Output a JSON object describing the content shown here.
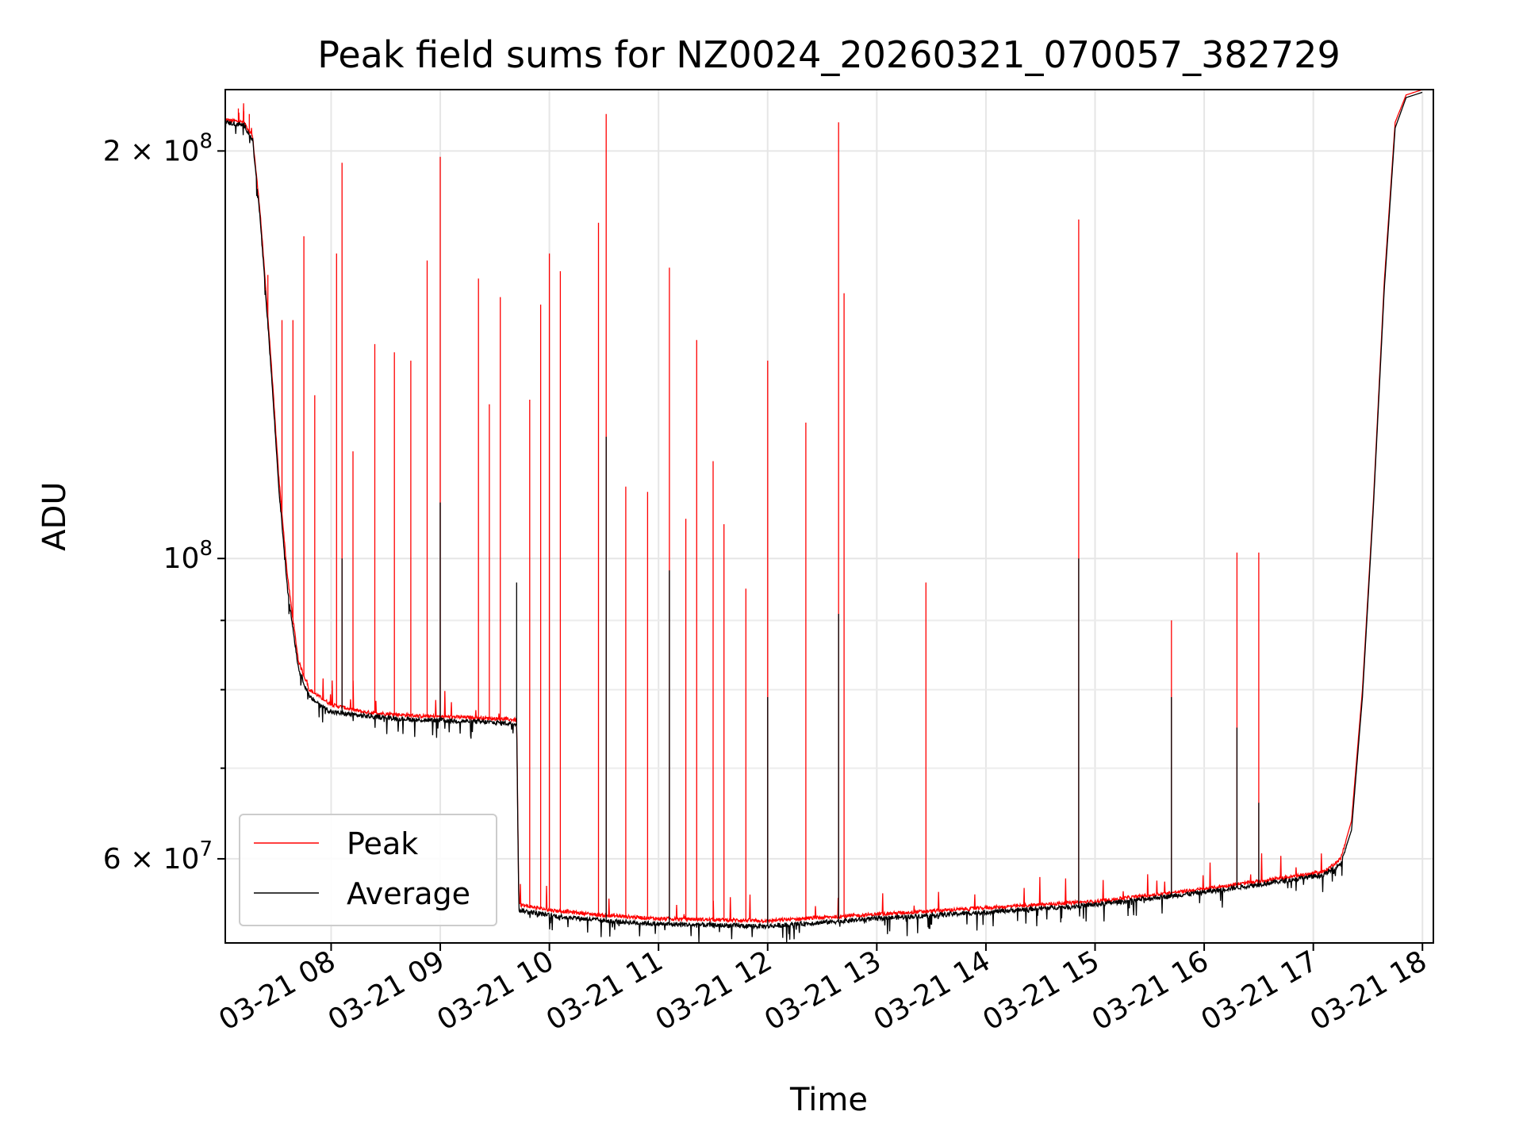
{
  "chart_data": {
    "type": "line",
    "title": "Peak field sums for NZ0024_20260321_070057_382729",
    "xlabel": "Time",
    "ylabel": "ADU",
    "yscale": "log",
    "ylim": [
      52000000,
      222000000
    ],
    "xlim_hours": [
      7.03,
      18.1
    ],
    "grid": true,
    "legend_position": "lower-left",
    "x_ticks": [
      {
        "label": "03-21 08",
        "hour": 8
      },
      {
        "label": "03-21 09",
        "hour": 9
      },
      {
        "label": "03-21 10",
        "hour": 10
      },
      {
        "label": "03-21 11",
        "hour": 11
      },
      {
        "label": "03-21 12",
        "hour": 12
      },
      {
        "label": "03-21 13",
        "hour": 13
      },
      {
        "label": "03-21 14",
        "hour": 14
      },
      {
        "label": "03-21 15",
        "hour": 15
      },
      {
        "label": "03-21 16",
        "hour": 16
      },
      {
        "label": "03-21 17",
        "hour": 17
      },
      {
        "label": "03-21 18",
        "hour": 18
      }
    ],
    "y_major_ticks": [
      {
        "mantissa": "6",
        "exponent": "7",
        "value": 60000000
      },
      {
        "mantissa": "",
        "exponent": "8",
        "value": 100000000
      },
      {
        "mantissa": "2",
        "exponent": "8",
        "value": 200000000
      }
    ],
    "y_minor_ticks": [
      70000000,
      80000000,
      90000000
    ],
    "series": [
      {
        "name": "Peak",
        "color": "#ff0000",
        "baseline": [
          [
            7.03,
            211000000
          ],
          [
            7.2,
            210000000
          ],
          [
            7.28,
            205000000
          ],
          [
            7.35,
            180000000
          ],
          [
            7.45,
            140000000
          ],
          [
            7.52,
            115000000
          ],
          [
            7.6,
            97000000
          ],
          [
            7.7,
            84000000
          ],
          [
            7.8,
            80000000
          ],
          [
            8.0,
            78000000
          ],
          [
            8.3,
            77000000
          ],
          [
            8.8,
            76500000
          ],
          [
            9.3,
            76300000
          ],
          [
            9.7,
            76000000
          ],
          [
            9.72,
            55500000
          ],
          [
            10.0,
            55000000
          ],
          [
            10.5,
            54500000
          ],
          [
            11.0,
            54200000
          ],
          [
            12.0,
            54000000
          ],
          [
            13.0,
            54600000
          ],
          [
            14.0,
            55200000
          ],
          [
            15.0,
            55800000
          ],
          [
            16.0,
            57000000
          ],
          [
            16.8,
            58200000
          ],
          [
            17.1,
            58700000
          ],
          [
            17.25,
            60000000
          ],
          [
            17.35,
            64000000
          ],
          [
            17.45,
            80000000
          ],
          [
            17.55,
            110000000
          ],
          [
            17.65,
            160000000
          ],
          [
            17.75,
            210000000
          ],
          [
            17.85,
            220000000
          ],
          [
            18.0,
            222000000
          ]
        ],
        "spikes": [
          [
            7.15,
            215000000
          ],
          [
            7.2,
            214000000
          ],
          [
            7.25,
            213000000
          ],
          [
            7.42,
            162000000
          ],
          [
            7.55,
            150000000
          ],
          [
            7.65,
            150000000
          ],
          [
            7.75,
            173000000
          ],
          [
            7.85,
            132000000
          ],
          [
            8.05,
            168000000
          ],
          [
            8.1,
            196000000
          ],
          [
            8.2,
            120000000
          ],
          [
            8.4,
            144000000
          ],
          [
            8.58,
            142000000
          ],
          [
            8.73,
            140000000
          ],
          [
            8.88,
            166000000
          ],
          [
            9.0,
            198000000
          ],
          [
            9.35,
            161000000
          ],
          [
            9.45,
            130000000
          ],
          [
            9.55,
            156000000
          ],
          [
            9.82,
            131000000
          ],
          [
            9.92,
            154000000
          ],
          [
            10.0,
            168000000
          ],
          [
            10.1,
            163000000
          ],
          [
            10.45,
            177000000
          ],
          [
            10.52,
            213000000
          ],
          [
            10.7,
            113000000
          ],
          [
            10.9,
            112000000
          ],
          [
            11.1,
            164000000
          ],
          [
            11.25,
            107000000
          ],
          [
            11.35,
            145000000
          ],
          [
            11.5,
            118000000
          ],
          [
            11.6,
            106000000
          ],
          [
            11.8,
            95000000
          ],
          [
            12.0,
            140000000
          ],
          [
            12.35,
            126000000
          ],
          [
            12.65,
            210000000
          ],
          [
            12.7,
            157000000
          ],
          [
            13.45,
            96000000
          ],
          [
            14.85,
            178000000
          ],
          [
            15.7,
            90000000
          ],
          [
            16.3,
            101000000
          ],
          [
            16.5,
            101000000
          ]
        ]
      },
      {
        "name": "Average",
        "color": "#000000",
        "baseline": [
          [
            7.03,
            210000000
          ],
          [
            7.2,
            209000000
          ],
          [
            7.28,
            204000000
          ],
          [
            7.35,
            178000000
          ],
          [
            7.45,
            138000000
          ],
          [
            7.52,
            113000000
          ],
          [
            7.6,
            95000000
          ],
          [
            7.7,
            83000000
          ],
          [
            7.8,
            79000000
          ],
          [
            8.0,
            77000000
          ],
          [
            8.3,
            76500000
          ],
          [
            8.8,
            76000000
          ],
          [
            9.3,
            75800000
          ],
          [
            9.7,
            75500000
          ],
          [
            9.72,
            55000000
          ],
          [
            10.0,
            54500000
          ],
          [
            10.5,
            54000000
          ],
          [
            11.0,
            53700000
          ],
          [
            12.0,
            53500000
          ],
          [
            13.0,
            54200000
          ],
          [
            14.0,
            54800000
          ],
          [
            15.0,
            55500000
          ],
          [
            16.0,
            56700000
          ],
          [
            16.8,
            57900000
          ],
          [
            17.1,
            58400000
          ],
          [
            17.25,
            59500000
          ],
          [
            17.35,
            63000000
          ],
          [
            17.45,
            79000000
          ],
          [
            17.55,
            109000000
          ],
          [
            17.65,
            158000000
          ],
          [
            17.75,
            208000000
          ],
          [
            17.85,
            219000000
          ],
          [
            18.0,
            221000000
          ]
        ],
        "spikes": [
          [
            8.1,
            100000000
          ],
          [
            9.0,
            110000000
          ],
          [
            9.7,
            96000000
          ],
          [
            10.52,
            123000000
          ],
          [
            11.1,
            98000000
          ],
          [
            12.0,
            79000000
          ],
          [
            12.65,
            91000000
          ],
          [
            14.85,
            100000000
          ],
          [
            15.7,
            79000000
          ],
          [
            16.3,
            75000000
          ],
          [
            16.5,
            66000000
          ]
        ]
      }
    ]
  }
}
